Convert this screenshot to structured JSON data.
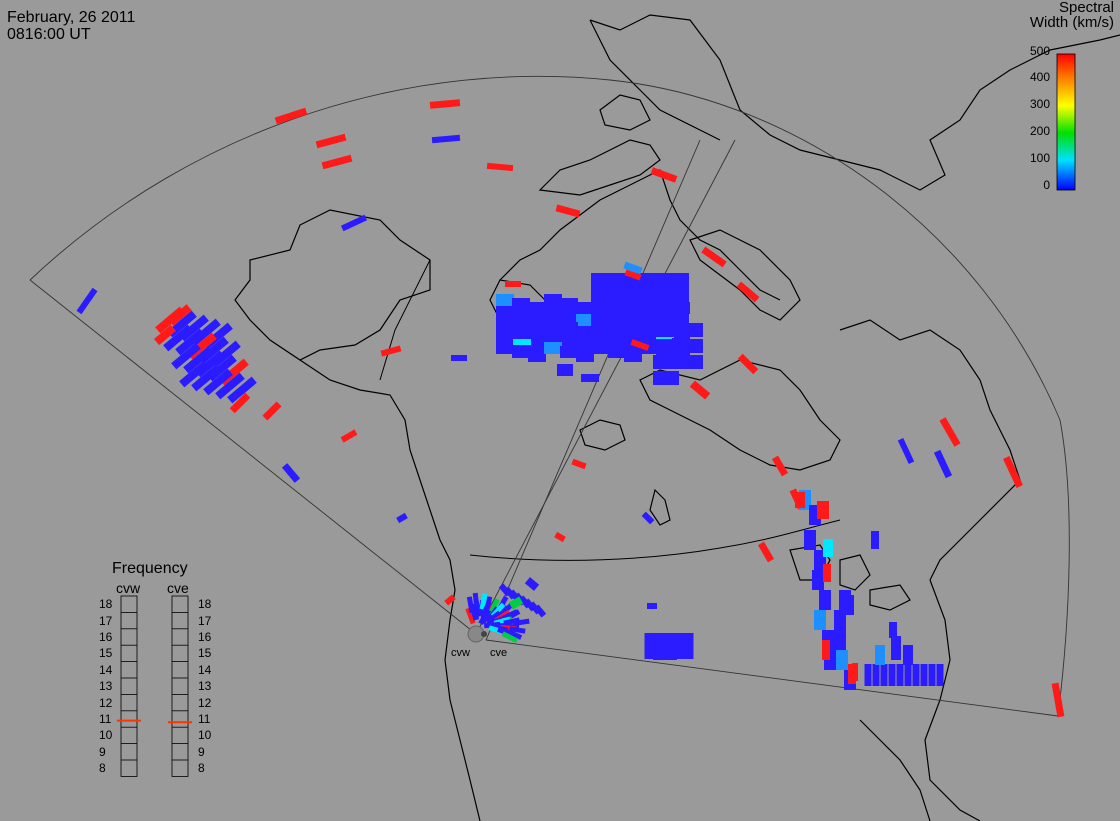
{
  "header": {
    "date": "February, 26 2011",
    "time": "0816:00 UT"
  },
  "colorbar": {
    "title_line1": "Spectral",
    "title_line2": "Width (km/s)",
    "ticks": [
      "500",
      "400",
      "300",
      "200",
      "100",
      "0"
    ],
    "colors": [
      "#ff0000",
      "#ff7f00",
      "#ffff00",
      "#00e000",
      "#00e0ff",
      "#0000ff"
    ]
  },
  "frequency": {
    "title": "Frequency",
    "radars": [
      {
        "name": "cvw",
        "value_mhz": 10.9
      },
      {
        "name": "cve",
        "value_mhz": 10.8
      }
    ],
    "ticks": [
      "18",
      "17",
      "16",
      "15",
      "14",
      "13",
      "12",
      "11",
      "10",
      "9",
      "8"
    ],
    "marker_color": "#ff3300"
  },
  "sites": [
    {
      "name": "cvw"
    },
    {
      "name": "cve"
    }
  ],
  "colors": {
    "background": "#9a9a9a",
    "coastline": "#000000",
    "fov": "#333333",
    "low_width": "#2a1cff",
    "high_width": "#ff1a1a",
    "mid_width": "#1e8fff",
    "cyan": "#00e8ff"
  }
}
